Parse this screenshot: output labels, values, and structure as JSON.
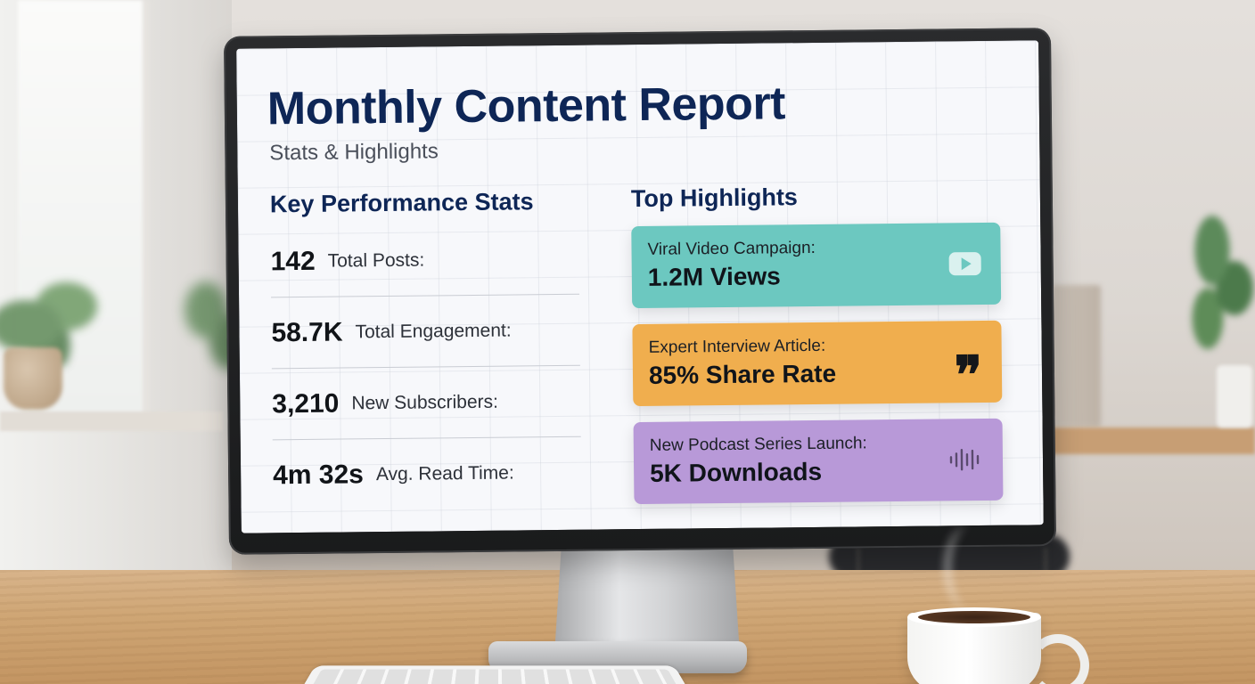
{
  "report": {
    "title": "Monthly Content Report",
    "subtitle": "Stats & Highlights"
  },
  "stats": {
    "heading": "Key Performance Stats",
    "items": [
      {
        "value": "142",
        "label": "Total Posts:"
      },
      {
        "value": "58.7K",
        "label": "Total Engagement:"
      },
      {
        "value": "3,210",
        "label": "New Subscribers:"
      },
      {
        "value": "4m 32s",
        "label": "Avg. Read Time:"
      }
    ]
  },
  "highlights": {
    "heading": "Top Highlights",
    "cards": [
      {
        "caption": "Viral Video Campaign:",
        "metric": "1.2M Views",
        "icon": "play-icon",
        "color": "#6cc8c0"
      },
      {
        "caption": "Expert Interview Article:",
        "metric": "85% Share Rate",
        "icon": "quote-icon",
        "color": "#f0ae4e"
      },
      {
        "caption": "New Podcast Series Launch:",
        "metric": "5K Downloads",
        "icon": "audio-wave-icon",
        "color": "#b899d8"
      }
    ]
  },
  "colors": {
    "title": "#0e2656",
    "screen_background": "#f7f8fb"
  }
}
